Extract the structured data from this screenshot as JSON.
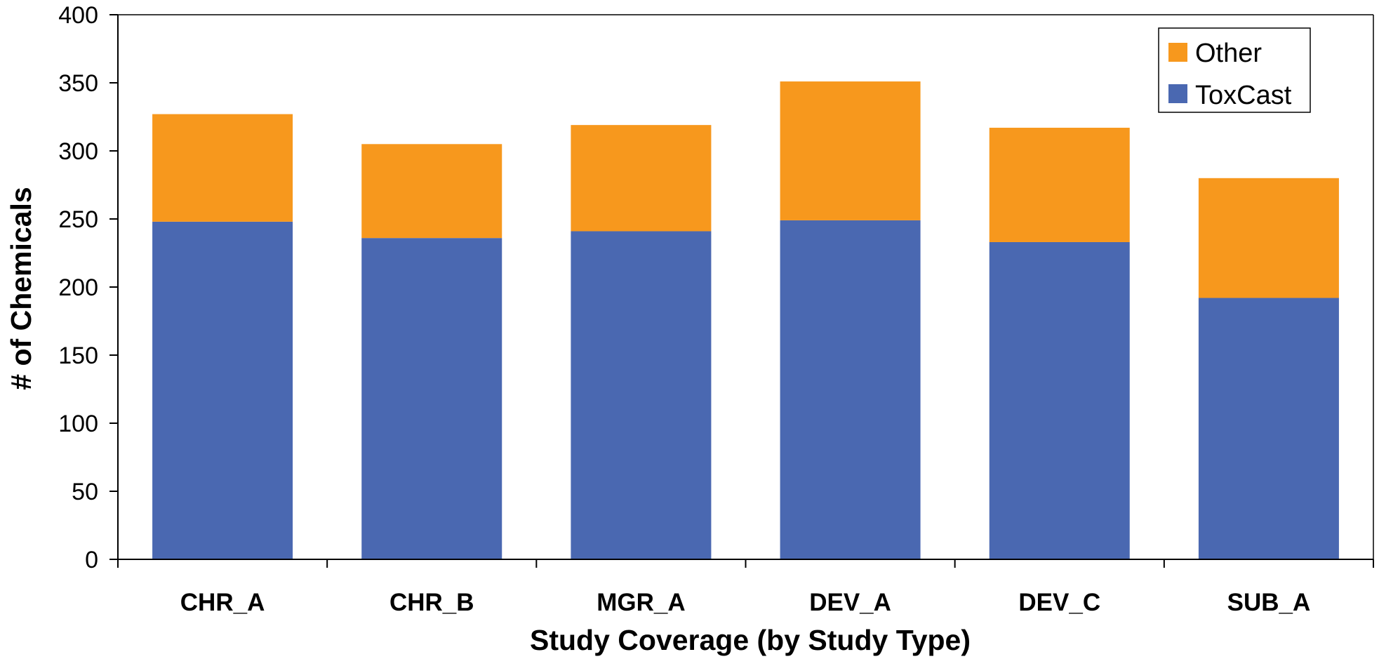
{
  "chart_data": {
    "type": "bar",
    "stacked": true,
    "title": "",
    "xlabel": "Study Coverage (by Study Type)",
    "ylabel": "# of Chemicals",
    "ylim": [
      0,
      400
    ],
    "yticks": [
      0,
      50,
      100,
      150,
      200,
      250,
      300,
      350,
      400
    ],
    "categories": [
      "CHR_A",
      "CHR_B",
      "MGR_A",
      "DEV_A",
      "DEV_C",
      "SUB_A"
    ],
    "series": [
      {
        "name": "ToxCast",
        "color": "#4A68B1",
        "values": [
          248,
          236,
          241,
          249,
          233,
          192
        ]
      },
      {
        "name": "Other",
        "color": "#F7981D",
        "values": [
          79,
          69,
          78,
          102,
          84,
          88
        ]
      }
    ],
    "legend": {
      "position": "top-right",
      "order": [
        "Other",
        "ToxCast"
      ]
    },
    "grid": false
  }
}
